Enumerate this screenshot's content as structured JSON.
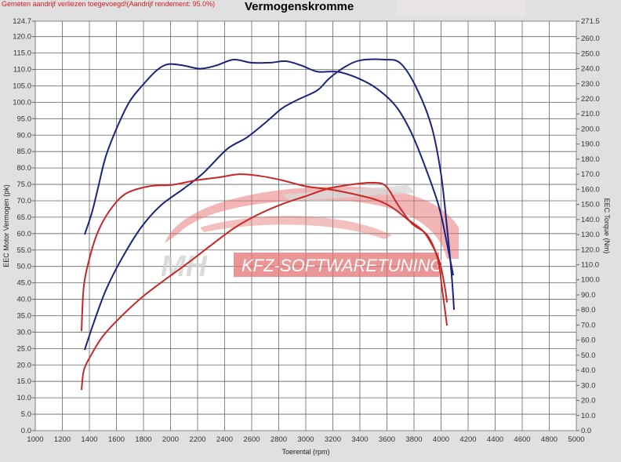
{
  "header": {
    "note": "Gemeten aandrijf verliezen toegevoegd!(Aandrijf rendement: 95.0%)",
    "title": "Vermogenskromme"
  },
  "watermark": {
    "logo_text": "MH KFZ-SOFTWARETUNING",
    "mh": "MH",
    "brand": "KFZ-SOFTWARETUNING"
  },
  "colors": {
    "background": "#e0e0e0",
    "plot": "#ffffff",
    "grid": "#555555",
    "tuned": "#1a237e",
    "stock": "#c62828",
    "note": "#d42020"
  },
  "chart_data": {
    "type": "line",
    "title": "Vermogenskromme",
    "xlabel": "Toerental (rpm)",
    "ylabel": "EEC Motor Vermogen (pk)",
    "y2label": "EEC Torque (Nm)",
    "xlim": [
      1000,
      5000
    ],
    "ylim": [
      0,
      124.7
    ],
    "y2lim": [
      0,
      271.5
    ],
    "xticks": [
      1000,
      1200,
      1400,
      1600,
      1800,
      2000,
      2200,
      2400,
      2600,
      2800,
      3000,
      3200,
      3400,
      3600,
      3800,
      4000,
      4200,
      4400,
      4600,
      4800,
      5000
    ],
    "yticks": [
      "0.0",
      "5.0",
      "10.0",
      "15.0",
      "20.0",
      "25.0",
      "30.0",
      "35.0",
      "40.0",
      "45.0",
      "50.0",
      "55.0",
      "60.0",
      "65.0",
      "70.0",
      "75.0",
      "80.0",
      "85.0",
      "90.0",
      "95.0",
      "100.0",
      "105.0",
      "110.0",
      "115.0",
      "120.0",
      "124.7"
    ],
    "y2ticks": [
      "0.0",
      "10.0",
      "20.0",
      "30.0",
      "40.0",
      "50.0",
      "60.0",
      "70.0",
      "80.0",
      "90.0",
      "100.0",
      "110.0",
      "120.0",
      "130.0",
      "140.0",
      "150.0",
      "160.0",
      "170.0",
      "180.0",
      "190.0",
      "200.0",
      "210.0",
      "220.0",
      "230.0",
      "240.0",
      "250.0",
      "260.0",
      "271.5"
    ],
    "grid": true,
    "series": [
      {
        "color": "#1a237e",
        "axis": "y",
        "unit": "pk",
        "x": [
          1365,
          1435,
          1522,
          1638,
          1783,
          1928,
          2101,
          2246,
          2420,
          2565,
          2710,
          2826,
          2942,
          3087,
          3174,
          3290,
          3406,
          3580,
          3696,
          3812,
          3928,
          3998,
          4044,
          4078,
          4096
        ],
        "y": [
          24.6,
          33.2,
          42.8,
          52.3,
          61.9,
          68.6,
          73.8,
          78.6,
          85.8,
          89.3,
          94.1,
          98.2,
          100.8,
          103.7,
          107.3,
          110.8,
          112.8,
          113.0,
          112.0,
          104.9,
          92.9,
          78.6,
          61.9,
          47.5,
          36.8
        ]
      },
      {
        "color": "#1a237e",
        "axis": "y2",
        "unit": "Nm",
        "x": [
          1365,
          1420,
          1464,
          1522,
          1609,
          1696,
          1783,
          1899,
          1986,
          2101,
          2217,
          2333,
          2467,
          2594,
          2739,
          2855,
          2971,
          3087,
          3232,
          3377,
          3522,
          3667,
          3783,
          3899,
          3986,
          4044,
          4090
        ],
        "y": [
          130,
          145,
          161,
          182,
          202,
          218,
          228,
          239,
          243,
          242,
          240,
          242,
          246,
          244,
          244,
          245,
          242,
          238,
          238,
          234,
          227,
          215,
          197,
          171,
          148,
          124,
          103
        ]
      },
      {
        "color": "#c62828",
        "axis": "y",
        "unit": "pk",
        "x": [
          1342,
          1359,
          1406,
          1493,
          1609,
          1783,
          1957,
          2130,
          2304,
          2478,
          2652,
          2826,
          2999,
          3174,
          3348,
          3493,
          3591,
          3684,
          3783,
          3899,
          3975,
          4009,
          4044
        ],
        "y": [
          12.4,
          18.4,
          22.5,
          28.4,
          33.7,
          40.4,
          45.9,
          51.1,
          56.6,
          61.9,
          65.9,
          69.0,
          71.4,
          73.8,
          75.0,
          75.5,
          74.5,
          68.6,
          63.1,
          59.5,
          52.3,
          42.8,
          32.0
        ]
      },
      {
        "color": "#c62828",
        "axis": "y2",
        "unit": "Nm",
        "x": [
          1342,
          1359,
          1406,
          1464,
          1551,
          1667,
          1841,
          2015,
          2188,
          2362,
          2507,
          2652,
          2826,
          2999,
          3174,
          3348,
          3522,
          3638,
          3754,
          3870,
          3957,
          3998,
          4032,
          4044
        ],
        "y": [
          66,
          96,
          116,
          132,
          146,
          157,
          162,
          163,
          166,
          168,
          170,
          169,
          166,
          162,
          160,
          157,
          153,
          148,
          140,
          132,
          119,
          109,
          93,
          85
        ]
      }
    ]
  }
}
